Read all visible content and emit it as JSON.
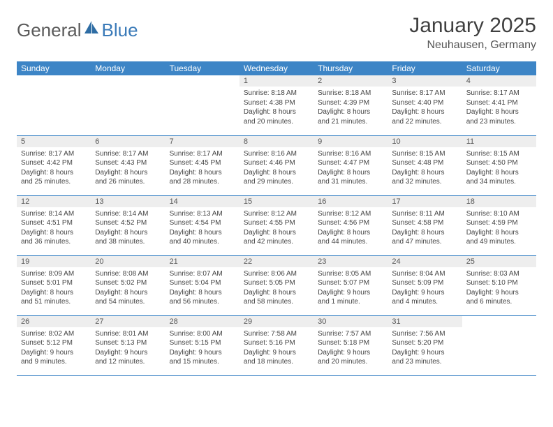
{
  "logo": {
    "text_general": "General",
    "text_blue": "Blue"
  },
  "title": "January 2025",
  "location": "Neuhausen, Germany",
  "colors": {
    "header_bg": "#3d85c6",
    "header_text": "#ffffff",
    "daynum_bg": "#eeeeee",
    "border": "#3d85c6",
    "logo_gray": "#5a5a5a",
    "logo_blue": "#3a7ab8"
  },
  "day_names": [
    "Sunday",
    "Monday",
    "Tuesday",
    "Wednesday",
    "Thursday",
    "Friday",
    "Saturday"
  ],
  "weeks": [
    [
      null,
      null,
      null,
      {
        "n": "1",
        "sr": "8:18 AM",
        "ss": "4:38 PM",
        "dl": "8 hours and 20 minutes."
      },
      {
        "n": "2",
        "sr": "8:18 AM",
        "ss": "4:39 PM",
        "dl": "8 hours and 21 minutes."
      },
      {
        "n": "3",
        "sr": "8:17 AM",
        "ss": "4:40 PM",
        "dl": "8 hours and 22 minutes."
      },
      {
        "n": "4",
        "sr": "8:17 AM",
        "ss": "4:41 PM",
        "dl": "8 hours and 23 minutes."
      }
    ],
    [
      {
        "n": "5",
        "sr": "8:17 AM",
        "ss": "4:42 PM",
        "dl": "8 hours and 25 minutes."
      },
      {
        "n": "6",
        "sr": "8:17 AM",
        "ss": "4:43 PM",
        "dl": "8 hours and 26 minutes."
      },
      {
        "n": "7",
        "sr": "8:17 AM",
        "ss": "4:45 PM",
        "dl": "8 hours and 28 minutes."
      },
      {
        "n": "8",
        "sr": "8:16 AM",
        "ss": "4:46 PM",
        "dl": "8 hours and 29 minutes."
      },
      {
        "n": "9",
        "sr": "8:16 AM",
        "ss": "4:47 PM",
        "dl": "8 hours and 31 minutes."
      },
      {
        "n": "10",
        "sr": "8:15 AM",
        "ss": "4:48 PM",
        "dl": "8 hours and 32 minutes."
      },
      {
        "n": "11",
        "sr": "8:15 AM",
        "ss": "4:50 PM",
        "dl": "8 hours and 34 minutes."
      }
    ],
    [
      {
        "n": "12",
        "sr": "8:14 AM",
        "ss": "4:51 PM",
        "dl": "8 hours and 36 minutes."
      },
      {
        "n": "13",
        "sr": "8:14 AM",
        "ss": "4:52 PM",
        "dl": "8 hours and 38 minutes."
      },
      {
        "n": "14",
        "sr": "8:13 AM",
        "ss": "4:54 PM",
        "dl": "8 hours and 40 minutes."
      },
      {
        "n": "15",
        "sr": "8:12 AM",
        "ss": "4:55 PM",
        "dl": "8 hours and 42 minutes."
      },
      {
        "n": "16",
        "sr": "8:12 AM",
        "ss": "4:56 PM",
        "dl": "8 hours and 44 minutes."
      },
      {
        "n": "17",
        "sr": "8:11 AM",
        "ss": "4:58 PM",
        "dl": "8 hours and 47 minutes."
      },
      {
        "n": "18",
        "sr": "8:10 AM",
        "ss": "4:59 PM",
        "dl": "8 hours and 49 minutes."
      }
    ],
    [
      {
        "n": "19",
        "sr": "8:09 AM",
        "ss": "5:01 PM",
        "dl": "8 hours and 51 minutes."
      },
      {
        "n": "20",
        "sr": "8:08 AM",
        "ss": "5:02 PM",
        "dl": "8 hours and 54 minutes."
      },
      {
        "n": "21",
        "sr": "8:07 AM",
        "ss": "5:04 PM",
        "dl": "8 hours and 56 minutes."
      },
      {
        "n": "22",
        "sr": "8:06 AM",
        "ss": "5:05 PM",
        "dl": "8 hours and 58 minutes."
      },
      {
        "n": "23",
        "sr": "8:05 AM",
        "ss": "5:07 PM",
        "dl": "9 hours and 1 minute."
      },
      {
        "n": "24",
        "sr": "8:04 AM",
        "ss": "5:09 PM",
        "dl": "9 hours and 4 minutes."
      },
      {
        "n": "25",
        "sr": "8:03 AM",
        "ss": "5:10 PM",
        "dl": "9 hours and 6 minutes."
      }
    ],
    [
      {
        "n": "26",
        "sr": "8:02 AM",
        "ss": "5:12 PM",
        "dl": "9 hours and 9 minutes."
      },
      {
        "n": "27",
        "sr": "8:01 AM",
        "ss": "5:13 PM",
        "dl": "9 hours and 12 minutes."
      },
      {
        "n": "28",
        "sr": "8:00 AM",
        "ss": "5:15 PM",
        "dl": "9 hours and 15 minutes."
      },
      {
        "n": "29",
        "sr": "7:58 AM",
        "ss": "5:16 PM",
        "dl": "9 hours and 18 minutes."
      },
      {
        "n": "30",
        "sr": "7:57 AM",
        "ss": "5:18 PM",
        "dl": "9 hours and 20 minutes."
      },
      {
        "n": "31",
        "sr": "7:56 AM",
        "ss": "5:20 PM",
        "dl": "9 hours and 23 minutes."
      },
      null
    ]
  ],
  "labels": {
    "sunrise": "Sunrise:",
    "sunset": "Sunset:",
    "daylight": "Daylight:"
  }
}
